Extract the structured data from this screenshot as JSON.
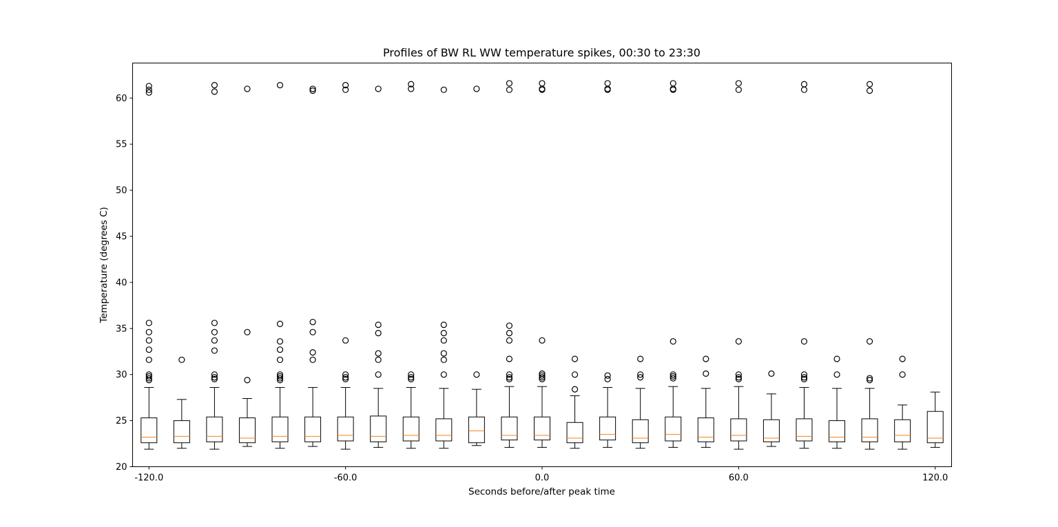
{
  "chart_data": {
    "type": "boxplot",
    "title": "Profiles of BW RL WW temperature spikes, 00:30 to 23:30",
    "xlabel": "Seconds before/after peak time",
    "ylabel": "Temperature (degrees C)",
    "ylim": [
      20,
      63.8
    ],
    "yticks": [
      20,
      25,
      30,
      35,
      40,
      45,
      50,
      55,
      60
    ],
    "xticks": [
      "-120.0",
      "-60.0",
      "0.0",
      "60.0",
      "120.0"
    ],
    "xtick_positions": [
      -120,
      -60,
      0,
      60,
      120
    ],
    "xlim": [
      -125,
      125
    ],
    "grid": false,
    "colors": {
      "box": "#000000",
      "median": "#ff7f0e",
      "flier": "#000000"
    },
    "boxes": [
      {
        "x": -120,
        "whislo": 21.9,
        "q1": 22.6,
        "med": 23.2,
        "q3": 25.3,
        "whishi": 28.6,
        "fliers": [
          29.4,
          29.6,
          29.8,
          30.0,
          31.6,
          32.7,
          33.7,
          34.6,
          35.6,
          60.6,
          60.9,
          61.3
        ]
      },
      {
        "x": -110,
        "whislo": 22.0,
        "q1": 22.6,
        "med": 23.3,
        "q3": 25.0,
        "whishi": 27.3,
        "fliers": [
          31.6
        ]
      },
      {
        "x": -100,
        "whislo": 21.9,
        "q1": 22.7,
        "med": 23.3,
        "q3": 25.4,
        "whishi": 28.6,
        "fliers": [
          29.5,
          29.7,
          30.0,
          32.6,
          33.7,
          34.6,
          35.6,
          60.7,
          61.4
        ]
      },
      {
        "x": -90,
        "whislo": 22.2,
        "q1": 22.6,
        "med": 23.1,
        "q3": 25.3,
        "whishi": 27.4,
        "fliers": [
          29.4,
          34.6,
          61.0
        ]
      },
      {
        "x": -80,
        "whislo": 22.0,
        "q1": 22.7,
        "med": 23.3,
        "q3": 25.4,
        "whishi": 28.6,
        "fliers": [
          29.4,
          29.6,
          29.8,
          30.0,
          31.6,
          32.7,
          33.6,
          35.5,
          61.4
        ]
      },
      {
        "x": -70,
        "whislo": 22.2,
        "q1": 22.7,
        "med": 23.3,
        "q3": 25.4,
        "whishi": 28.6,
        "fliers": [
          31.6,
          32.4,
          34.6,
          35.7,
          60.8,
          61.0
        ]
      },
      {
        "x": -60,
        "whislo": 21.9,
        "q1": 22.8,
        "med": 23.4,
        "q3": 25.4,
        "whishi": 28.6,
        "fliers": [
          29.5,
          29.7,
          30.0,
          33.7,
          60.9,
          61.4
        ]
      },
      {
        "x": -50,
        "whislo": 22.1,
        "q1": 22.7,
        "med": 23.3,
        "q3": 25.5,
        "whishi": 28.5,
        "fliers": [
          30.0,
          31.6,
          32.3,
          34.5,
          35.4,
          61.0
        ]
      },
      {
        "x": -40,
        "whislo": 22.0,
        "q1": 22.8,
        "med": 23.4,
        "q3": 25.4,
        "whishi": 28.6,
        "fliers": [
          29.5,
          29.7,
          30.0,
          61.0,
          61.5
        ]
      },
      {
        "x": -30,
        "whislo": 22.0,
        "q1": 22.8,
        "med": 23.4,
        "q3": 25.2,
        "whishi": 28.5,
        "fliers": [
          30.0,
          31.6,
          32.3,
          33.7,
          34.5,
          35.4,
          60.9
        ]
      },
      {
        "x": -20,
        "whislo": 22.3,
        "q1": 22.6,
        "med": 23.9,
        "q3": 25.4,
        "whishi": 28.4,
        "fliers": [
          30.0,
          61.0
        ]
      },
      {
        "x": -10,
        "whislo": 22.1,
        "q1": 22.9,
        "med": 23.4,
        "q3": 25.4,
        "whishi": 28.7,
        "fliers": [
          29.5,
          29.7,
          30.0,
          31.7,
          33.7,
          34.5,
          35.3,
          60.9,
          61.6
        ]
      },
      {
        "x": 0,
        "whislo": 22.1,
        "q1": 22.9,
        "med": 23.4,
        "q3": 25.4,
        "whishi": 28.7,
        "fliers": [
          29.5,
          29.7,
          29.9,
          30.1,
          33.7,
          60.9,
          61.0,
          61.6
        ]
      },
      {
        "x": 10,
        "whislo": 22.0,
        "q1": 22.6,
        "med": 23.1,
        "q3": 24.8,
        "whishi": 27.7,
        "fliers": [
          28.4,
          30.0,
          31.7
        ]
      },
      {
        "x": 20,
        "whislo": 22.1,
        "q1": 22.9,
        "med": 23.5,
        "q3": 25.4,
        "whishi": 28.6,
        "fliers": [
          29.5,
          29.9,
          60.9,
          61.0,
          61.6
        ]
      },
      {
        "x": 30,
        "whislo": 22.0,
        "q1": 22.6,
        "med": 23.1,
        "q3": 25.1,
        "whishi": 28.5,
        "fliers": [
          29.7,
          30.0,
          31.7
        ]
      },
      {
        "x": 40,
        "whislo": 22.1,
        "q1": 22.8,
        "med": 23.5,
        "q3": 25.4,
        "whishi": 28.7,
        "fliers": [
          29.6,
          29.8,
          30.0,
          33.6,
          60.9,
          61.0,
          61.6
        ]
      },
      {
        "x": 50,
        "whislo": 22.1,
        "q1": 22.7,
        "med": 23.2,
        "q3": 25.3,
        "whishi": 28.5,
        "fliers": [
          30.1,
          31.7
        ]
      },
      {
        "x": 60,
        "whislo": 21.9,
        "q1": 22.8,
        "med": 23.4,
        "q3": 25.2,
        "whishi": 28.7,
        "fliers": [
          29.5,
          29.7,
          30.0,
          33.6,
          60.9,
          61.6
        ]
      },
      {
        "x": 70,
        "whislo": 22.2,
        "q1": 22.7,
        "med": 23.1,
        "q3": 25.1,
        "whishi": 27.9,
        "fliers": [
          30.1
        ]
      },
      {
        "x": 80,
        "whislo": 22.0,
        "q1": 22.8,
        "med": 23.3,
        "q3": 25.2,
        "whishi": 28.6,
        "fliers": [
          29.5,
          29.7,
          30.0,
          33.6,
          60.9,
          61.5
        ]
      },
      {
        "x": 90,
        "whislo": 22.0,
        "q1": 22.7,
        "med": 23.2,
        "q3": 25.0,
        "whishi": 28.5,
        "fliers": [
          30.0,
          31.7
        ]
      },
      {
        "x": 100,
        "whislo": 21.9,
        "q1": 22.7,
        "med": 23.2,
        "q3": 25.2,
        "whishi": 28.5,
        "fliers": [
          29.4,
          29.6,
          33.6,
          60.8,
          61.5
        ]
      },
      {
        "x": 110,
        "whislo": 21.9,
        "q1": 22.7,
        "med": 23.4,
        "q3": 25.1,
        "whishi": 26.7,
        "fliers": [
          30.0,
          31.7
        ]
      },
      {
        "x": 120,
        "whislo": 22.1,
        "q1": 22.6,
        "med": 23.1,
        "q3": 26.0,
        "whishi": 28.1,
        "fliers": []
      }
    ]
  }
}
